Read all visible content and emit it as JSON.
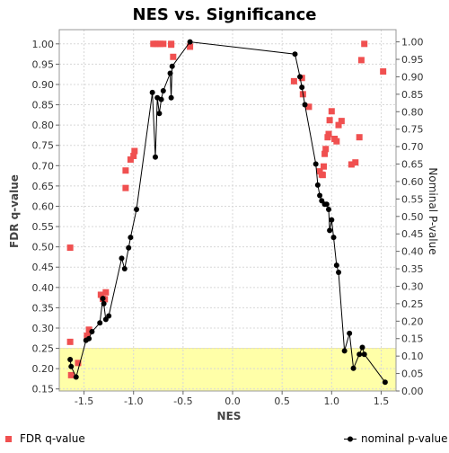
{
  "chart_data": {
    "type": "scatter",
    "title": "NES vs. Significance",
    "xlabel": "NES",
    "ylabel_left": "FDR q-value",
    "ylabel_right": "Nominal P-value",
    "xlim": [
      -1.75,
      1.65
    ],
    "ylim_left": [
      0.145,
      1.035
    ],
    "ylim_right": [
      0.0,
      1.035
    ],
    "x_ticks": [
      -1.5,
      -1.0,
      -0.5,
      0.0,
      0.5,
      1.0,
      1.5
    ],
    "x_tick_labels": [
      "-1.5",
      "-1.0",
      "-0.5",
      "0.0",
      "0.5",
      "1.0",
      "1.5"
    ],
    "y_left_ticks": [
      0.15,
      0.2,
      0.25,
      0.3,
      0.35,
      0.4,
      0.45,
      0.5,
      0.55,
      0.6,
      0.65,
      0.7,
      0.75,
      0.8,
      0.85,
      0.9,
      0.95,
      1.0
    ],
    "y_left_tick_labels": [
      "0.15",
      "0.20",
      "0.25",
      "0.30",
      "0.35",
      "0.40",
      "0.45",
      "0.50",
      "0.55",
      "0.60",
      "0.65",
      "0.70",
      "0.75",
      "0.80",
      "0.85",
      "0.90",
      "0.95",
      "1.00"
    ],
    "y_right_ticks": [
      0.0,
      0.05,
      0.1,
      0.15,
      0.2,
      0.25,
      0.3,
      0.35,
      0.4,
      0.45,
      0.5,
      0.55,
      0.6,
      0.65,
      0.7,
      0.75,
      0.8,
      0.85,
      0.9,
      0.95,
      1.0
    ],
    "y_right_tick_labels": [
      "0.00",
      "0.05",
      "0.10",
      "0.15",
      "0.20",
      "0.25",
      "0.30",
      "0.35",
      "0.40",
      "0.45",
      "0.50",
      "0.55",
      "0.60",
      "0.65",
      "0.70",
      "0.75",
      "0.80",
      "0.85",
      "0.90",
      "0.95",
      "1.00"
    ],
    "highlight_band_left": [
      0.145,
      0.25
    ],
    "grid": true,
    "legend": "bottom",
    "series": [
      {
        "name": "FDR q-value",
        "axis": "left",
        "marker": "square",
        "color": "#f05050",
        "points": [
          [
            -1.64,
            0.498
          ],
          [
            -1.64,
            0.266
          ],
          [
            -1.63,
            0.184
          ],
          [
            -1.56,
            0.214
          ],
          [
            -1.47,
            0.281
          ],
          [
            -1.45,
            0.296
          ],
          [
            -1.33,
            0.382
          ],
          [
            -1.31,
            0.372
          ],
          [
            -1.29,
            0.371
          ],
          [
            -1.28,
            0.388
          ],
          [
            -1.08,
            0.645
          ],
          [
            -1.08,
            0.688
          ],
          [
            -1.03,
            0.715
          ],
          [
            -1.0,
            0.724
          ],
          [
            -0.99,
            0.736
          ],
          [
            -0.8,
            1.0
          ],
          [
            -0.78,
            1.0
          ],
          [
            -0.76,
            1.0
          ],
          [
            -0.73,
            1.0
          ],
          [
            -0.7,
            1.0
          ],
          [
            -0.62,
            1.0
          ],
          [
            -0.6,
            0.968
          ],
          [
            -0.62,
            0.998
          ],
          [
            -0.43,
            0.993
          ],
          [
            0.62,
            0.908
          ],
          [
            0.7,
            0.916
          ],
          [
            0.71,
            0.876
          ],
          [
            0.77,
            0.845
          ],
          [
            0.88,
            0.686
          ],
          [
            0.9,
            0.678
          ],
          [
            0.91,
            0.677
          ],
          [
            0.92,
            0.698
          ],
          [
            0.93,
            0.729
          ],
          [
            0.94,
            0.741
          ],
          [
            0.96,
            0.77
          ],
          [
            0.97,
            0.778
          ],
          [
            0.98,
            0.812
          ],
          [
            1.0,
            0.834
          ],
          [
            1.03,
            0.766
          ],
          [
            1.05,
            0.76
          ],
          [
            1.07,
            0.8
          ],
          [
            1.1,
            0.81
          ],
          [
            1.2,
            0.703
          ],
          [
            1.24,
            0.708
          ],
          [
            1.28,
            0.77
          ],
          [
            1.3,
            0.96
          ],
          [
            1.33,
            1.0
          ],
          [
            1.52,
            0.932
          ]
        ]
      },
      {
        "name": "nominal p-value",
        "axis": "right",
        "marker": "circle",
        "color": "#000000",
        "connected": true,
        "points": [
          [
            -1.64,
            0.09
          ],
          [
            -1.63,
            0.07
          ],
          [
            -1.58,
            0.04
          ],
          [
            -1.48,
            0.145
          ],
          [
            -1.45,
            0.15
          ],
          [
            -1.42,
            0.17
          ],
          [
            -1.34,
            0.195
          ],
          [
            -1.31,
            0.265
          ],
          [
            -1.3,
            0.25
          ],
          [
            -1.28,
            0.205
          ],
          [
            -1.25,
            0.215
          ],
          [
            -1.12,
            0.38
          ],
          [
            -1.09,
            0.35
          ],
          [
            -1.05,
            0.41
          ],
          [
            -1.03,
            0.44
          ],
          [
            -0.97,
            0.52
          ],
          [
            -0.81,
            0.855
          ],
          [
            -0.78,
            0.67
          ],
          [
            -0.76,
            0.84
          ],
          [
            -0.74,
            0.795
          ],
          [
            -0.72,
            0.835
          ],
          [
            -0.7,
            0.86
          ],
          [
            -0.63,
            0.91
          ],
          [
            -0.62,
            0.84
          ],
          [
            -0.61,
            0.93
          ],
          [
            -0.43,
            1.0
          ],
          [
            0.63,
            0.965
          ],
          [
            0.68,
            0.9
          ],
          [
            0.7,
            0.87
          ],
          [
            0.73,
            0.82
          ],
          [
            0.84,
            0.65
          ],
          [
            0.86,
            0.59
          ],
          [
            0.88,
            0.56
          ],
          [
            0.9,
            0.545
          ],
          [
            0.93,
            0.535
          ],
          [
            0.95,
            0.535
          ],
          [
            0.97,
            0.52
          ],
          [
            0.98,
            0.46
          ],
          [
            1.0,
            0.49
          ],
          [
            1.02,
            0.44
          ],
          [
            1.05,
            0.36
          ],
          [
            1.07,
            0.34
          ],
          [
            1.13,
            0.115
          ],
          [
            1.18,
            0.165
          ],
          [
            1.22,
            0.065
          ],
          [
            1.28,
            0.105
          ],
          [
            1.31,
            0.125
          ],
          [
            1.33,
            0.105
          ],
          [
            1.54,
            0.025
          ]
        ]
      }
    ]
  },
  "legend": {
    "fdr_label": "FDR q-value",
    "nominal_label": "nominal p-value"
  }
}
